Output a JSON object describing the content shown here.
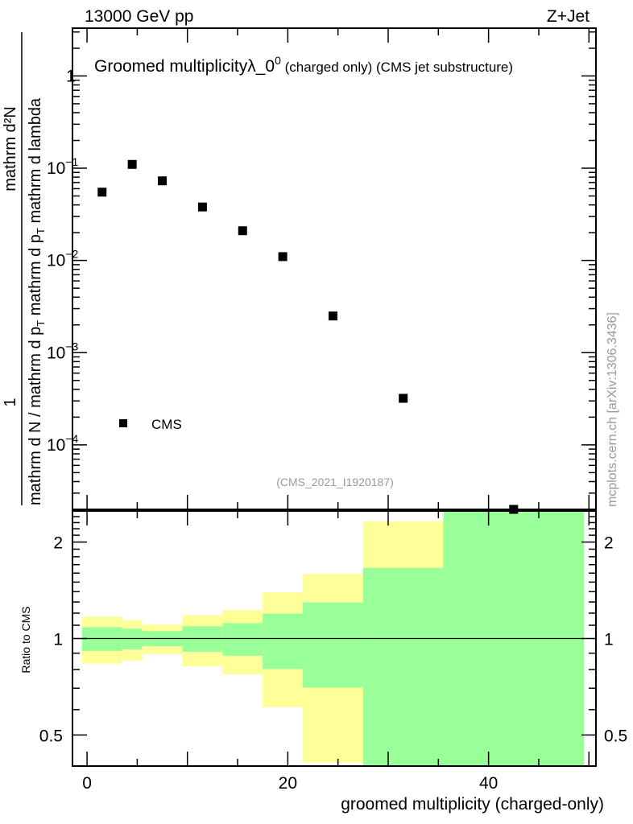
{
  "header": {
    "left": "13000 GeV pp",
    "right": "Z+Jet"
  },
  "watermark": "(CMS_2021_I1920187)",
  "side_credit": "mcplots.cern.ch [arXiv:1306.3436]",
  "colors": {
    "data": "#000000",
    "band_outer": "#ffff99",
    "band_inner": "#99ff99",
    "grey_text": "#999999"
  },
  "chart_data": [
    {
      "type": "scatter",
      "title_main": "Groomed multiplicityλ_0",
      "title_sup": "0",
      "title_rest": " (charged only) (CMS jet substructure)",
      "ylabel": {
        "frac1_num": "1",
        "frac1_den": "mathrm d N / mathrm d p",
        "frac2_num": "mathrm d²N",
        "frac2_den": "mathrm d p",
        "frac2_den_rest": " mathrm d lambda",
        "sub": "T",
        "mid": " mathrm d p",
        "mid_rest": " mathrm d p"
      },
      "yscale": "log",
      "ylim": [
        2e-05,
        3.3
      ],
      "xlim": [
        -1.45,
        50.7
      ],
      "ytick_labels": [
        {
          "value": 1,
          "base": "1",
          "exp": ""
        },
        {
          "value": 0.1,
          "base": "10",
          "exp": "−1"
        },
        {
          "value": 0.01,
          "base": "10",
          "exp": "−2"
        },
        {
          "value": 0.001,
          "base": "10",
          "exp": "−3"
        },
        {
          "value": 0.0001,
          "base": "10",
          "exp": "−4"
        }
      ],
      "legend": {
        "label": "CMS",
        "placement": "bottom-left"
      },
      "series": [
        {
          "name": "CMS",
          "x": [
            1.5,
            4.5,
            7.5,
            11.5,
            15.5,
            19.5,
            24.5,
            31.5,
            42.5
          ],
          "y": [
            0.055,
            0.11,
            0.073,
            0.038,
            0.021,
            0.011,
            0.0025,
            0.00032,
            2e-05
          ]
        }
      ]
    },
    {
      "type": "area",
      "ylabel": "Ratio to CMS",
      "xlabel": "groomed multiplicity (charged-only)",
      "yscale": "log",
      "ylim": [
        0.4,
        2.5
      ],
      "xlim": [
        -1.45,
        50.7
      ],
      "xtick_labels": [
        "0",
        "20",
        "40"
      ],
      "xticks": [
        0,
        20,
        40
      ],
      "ytick_labels": [
        "2",
        "1",
        "0.5"
      ],
      "yticks": [
        2,
        1,
        0.5
      ],
      "reference_line": 1,
      "bin_edges": [
        -0.5,
        3.5,
        5.5,
        9.5,
        13.5,
        17.5,
        21.5,
        27.5,
        35.5,
        49.5
      ],
      "outer_band": {
        "low": [
          0.835,
          0.854,
          0.894,
          0.819,
          0.773,
          0.611,
          0.41,
          0.4,
          0.4
        ],
        "high": [
          1.169,
          1.143,
          1.104,
          1.183,
          1.226,
          1.393,
          1.591,
          2.324,
          2.5
        ]
      },
      "inner_band": {
        "low": [
          0.915,
          0.925,
          0.946,
          0.909,
          0.884,
          0.803,
          0.703,
          0.4,
          0.4
        ],
        "high": [
          1.085,
          1.073,
          1.055,
          1.092,
          1.117,
          1.196,
          1.296,
          1.662,
          2.5
        ]
      }
    }
  ]
}
